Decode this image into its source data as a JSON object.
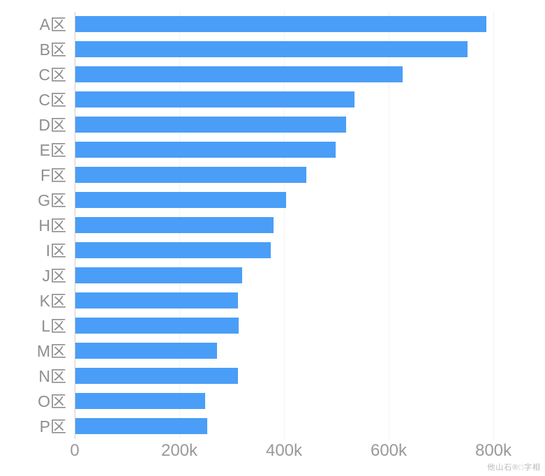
{
  "chart_data": {
    "type": "bar",
    "orientation": "horizontal",
    "title": "",
    "xlabel": "",
    "ylabel": "",
    "categories": [
      "A区",
      "B区",
      "C区",
      "C区",
      "D区",
      "E区",
      "F区",
      "G区",
      "H区",
      "I区",
      "J区",
      "K区",
      "L区",
      "M区",
      "N区",
      "O区",
      "P区"
    ],
    "values": [
      785000,
      749000,
      625000,
      533000,
      517000,
      497000,
      441000,
      402000,
      379000,
      373000,
      318000,
      310000,
      312000,
      270000,
      311000,
      248000,
      252000
    ],
    "xlim": [
      0,
      800000
    ],
    "x_ticks": [
      {
        "value": 0,
        "label": "0"
      },
      {
        "value": 200000,
        "label": "200k"
      },
      {
        "value": 400000,
        "label": "400k"
      },
      {
        "value": 600000,
        "label": "600k"
      },
      {
        "value": 800000,
        "label": "800k"
      }
    ],
    "grid": "vertical-dotted",
    "legend": "none"
  },
  "colors": {
    "bar": "#4a9ef7",
    "axis_line": "#cccccc",
    "gridline": "#e7e7e7",
    "tick_label": "#999999",
    "category_label": "#8e8e8e",
    "watermark": "#b9b9b9",
    "background": "#ffffff"
  },
  "watermark": "他山石®□字相"
}
